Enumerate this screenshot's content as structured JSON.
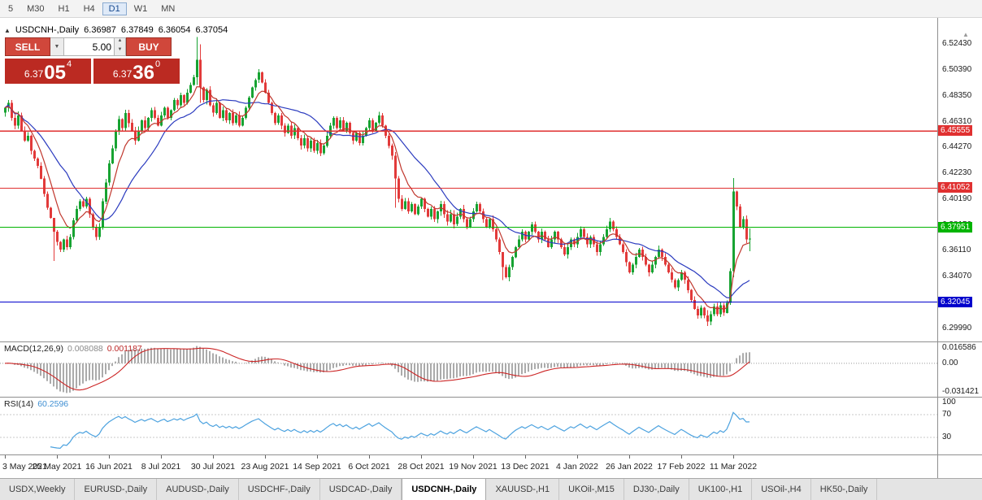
{
  "icons": {
    "collapse": "▲",
    "dropdown": "▼",
    "spin_up": "▲",
    "spin_down": "▼",
    "shift_marker": "▲"
  },
  "toolbar": {
    "timeframes": [
      {
        "label": "5",
        "active": false
      },
      {
        "label": "M30",
        "active": false
      },
      {
        "label": "H1",
        "active": false
      },
      {
        "label": "H4",
        "active": false
      },
      {
        "label": "D1",
        "active": true
      },
      {
        "label": "W1",
        "active": false
      },
      {
        "label": "MN",
        "active": false
      }
    ]
  },
  "chart": {
    "header": {
      "symbol": "USDCNH-,Daily",
      "open": "6.36987",
      "high": "6.37849",
      "low": "6.36054",
      "close": "6.37054"
    }
  },
  "trade_panel": {
    "sell_label": "SELL",
    "buy_label": "BUY",
    "volume": "5.00",
    "sell_price": {
      "prefix": "6.37",
      "big": "05",
      "sup": "4"
    },
    "buy_price": {
      "prefix": "6.37",
      "big": "36",
      "sup": "0"
    }
  },
  "price_axis": {
    "ticks": [
      "6.52430",
      "6.50390",
      "6.48350",
      "6.46310",
      "6.44270",
      "6.42230",
      "6.40190",
      "6.38150",
      "6.36110",
      "6.34070",
      "6.32030",
      "6.29990"
    ]
  },
  "hlines": [
    {
      "price": 6.45555,
      "label": "6.45555",
      "color": "#e03030"
    },
    {
      "price": 6.41052,
      "label": "6.41052",
      "color": "#e03030"
    },
    {
      "price": 6.37951,
      "label": "6.37951",
      "color": "#00b400"
    },
    {
      "price": 6.32045,
      "label": "6.32045",
      "color": "#0000cc"
    }
  ],
  "indicators": {
    "macd": {
      "name": "MACD(12,26,9)",
      "macd_value": "0.008088",
      "signal_value": "0.001187",
      "axis_top": "0.016586",
      "axis_zero": "0.00",
      "axis_bottom": "-0.031421"
    },
    "rsi": {
      "name": "RSI(14)",
      "value": "60.2596",
      "axis_top": "100",
      "axis_upper": "70",
      "axis_lower": "30",
      "levels": [
        70,
        30
      ]
    }
  },
  "chart_data": {
    "type": "candlestick",
    "symbol": "USDCNH",
    "timeframe": "Daily",
    "first_open": 6.47,
    "closes": [
      6.474,
      6.478,
      6.466,
      6.46,
      6.468,
      6.456,
      6.448,
      6.452,
      6.44,
      6.434,
      6.428,
      6.418,
      6.406,
      6.395,
      6.387,
      6.376,
      6.368,
      6.362,
      6.37,
      6.364,
      6.372,
      6.385,
      6.394,
      6.4,
      6.396,
      6.402,
      6.39,
      6.38,
      6.372,
      6.38,
      6.4,
      6.415,
      6.43,
      6.442,
      6.455,
      6.465,
      6.458,
      6.47,
      6.462,
      6.456,
      6.448,
      6.456,
      6.464,
      6.458,
      6.466,
      6.472,
      6.466,
      6.46,
      6.468,
      6.474,
      6.466,
      6.472,
      6.48,
      6.476,
      6.484,
      6.478,
      6.486,
      6.492,
      6.498,
      6.512,
      6.49,
      6.48,
      6.488,
      6.476,
      6.47,
      6.478,
      6.466,
      6.472,
      6.464,
      6.47,
      6.462,
      6.468,
      6.46,
      6.466,
      6.474,
      6.482,
      6.49,
      6.496,
      6.502,
      6.494,
      6.486,
      6.478,
      6.47,
      6.462,
      6.468,
      6.46,
      6.454,
      6.46,
      6.452,
      6.458,
      6.45,
      6.444,
      6.45,
      6.442,
      6.448,
      6.44,
      6.446,
      6.438,
      6.444,
      6.452,
      6.46,
      6.466,
      6.458,
      6.464,
      6.456,
      6.462,
      6.454,
      6.448,
      6.454,
      6.446,
      6.452,
      6.458,
      6.464,
      6.456,
      6.462,
      6.468,
      6.46,
      6.452,
      6.444,
      6.436,
      6.418,
      6.402,
      6.394,
      6.4,
      6.392,
      6.398,
      6.39,
      6.396,
      6.402,
      6.394,
      6.388,
      6.394,
      6.386,
      6.392,
      6.398,
      6.39,
      6.384,
      6.39,
      6.382,
      6.388,
      6.394,
      6.386,
      6.38,
      6.386,
      6.392,
      6.398,
      6.392,
      6.386,
      6.38,
      6.386,
      6.378,
      6.37,
      6.36,
      6.348,
      6.34,
      6.348,
      6.356,
      6.364,
      6.37,
      6.376,
      6.37,
      6.376,
      6.382,
      6.376,
      6.37,
      6.376,
      6.37,
      6.364,
      6.37,
      6.376,
      6.37,
      6.364,
      6.358,
      6.364,
      6.37,
      6.366,
      6.372,
      6.378,
      6.372,
      6.366,
      6.372,
      6.366,
      6.36,
      6.366,
      6.372,
      6.378,
      6.384,
      6.378,
      6.372,
      6.366,
      6.36,
      6.352,
      6.344,
      6.35,
      6.356,
      6.362,
      6.356,
      6.35,
      6.344,
      6.35,
      6.356,
      6.362,
      6.356,
      6.35,
      6.344,
      6.338,
      6.332,
      6.338,
      6.344,
      6.338,
      6.33,
      6.322,
      6.315,
      6.31,
      6.316,
      6.31,
      6.305,
      6.311,
      6.317,
      6.311,
      6.318,
      6.312,
      6.32,
      6.345,
      6.408,
      6.396,
      6.38,
      6.386,
      6.3699,
      6.3705
    ],
    "wick_overrides": {
      "15": [
        6.38,
        6.353
      ],
      "59": [
        6.53,
        6.492
      ],
      "60": [
        6.524,
        6.478
      ],
      "120": [
        6.439,
        6.395
      ],
      "153": [
        6.352,
        6.338
      ],
      "216": [
        6.314,
        6.3015
      ],
      "224": [
        6.4185,
        6.34
      ],
      "229": [
        6.3785,
        6.3606
      ]
    },
    "x_labels": [
      "3 May 2021",
      "25 May 2021",
      "16 Jun 2021",
      "8 Jul 2021",
      "30 Jul 2021",
      "23 Aug 2021",
      "14 Sep 2021",
      "6 Oct 2021",
      "28 Oct 2021",
      "19 Nov 2021",
      "13 Dec 2021",
      "4 Jan 2022",
      "26 Jan 2022",
      "17 Feb 2022",
      "11 Mar 2022"
    ],
    "label_step": 16
  },
  "tabs": [
    {
      "label": "USDX,Weekly",
      "active": false
    },
    {
      "label": "EURUSD-,Daily",
      "active": false
    },
    {
      "label": "AUDUSD-,Daily",
      "active": false
    },
    {
      "label": "USDCHF-,Daily",
      "active": false
    },
    {
      "label": "USDCAD-,Daily",
      "active": false
    },
    {
      "label": "USDCNH-,Daily",
      "active": true
    },
    {
      "label": "XAUUSD-,H1",
      "active": false
    },
    {
      "label": "UKOil-,M15",
      "active": false
    },
    {
      "label": "DJ30-,Daily",
      "active": false
    },
    {
      "label": "UK100-,H1",
      "active": false
    },
    {
      "label": "USOil-,H4",
      "active": false
    },
    {
      "label": "HK50-,Daily",
      "active": false
    }
  ],
  "colors": {
    "bull": "#17a332",
    "bear": "#e23a3a",
    "ma_fast": "#c0362c",
    "ma_slow": "#2b3bbf",
    "macd_bar": "#ababab",
    "macd_signal": "#cc2525",
    "rsi_line": "#4ca2df",
    "button_red": "#d0473b",
    "price_red": "#bb2a22"
  }
}
